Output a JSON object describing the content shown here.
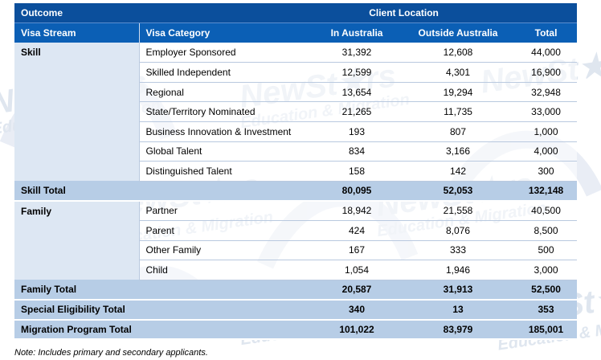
{
  "header": {
    "outcome_label": "Outcome",
    "client_location_label": "Client Location",
    "visa_stream_label": "Visa Stream",
    "visa_category_label": "Visa Category",
    "in_australia_label": "In Australia",
    "outside_australia_label": "Outside Australia",
    "total_label": "Total"
  },
  "skill": {
    "stream": "Skill",
    "rows": [
      {
        "category": "Employer Sponsored",
        "in": "31,392",
        "out": "12,608",
        "total": "44,000"
      },
      {
        "category": "Skilled Independent",
        "in": "12,599",
        "out": "4,301",
        "total": "16,900"
      },
      {
        "category": "Regional",
        "in": "13,654",
        "out": "19,294",
        "total": "32,948"
      },
      {
        "category": "State/Territory Nominated",
        "in": "21,265",
        "out": "11,735",
        "total": "33,000"
      },
      {
        "category": "Business Innovation & Investment",
        "in": "193",
        "out": "807",
        "total": "1,000"
      },
      {
        "category": "Global Talent",
        "in": "834",
        "out": "3,166",
        "total": "4,000"
      },
      {
        "category": "Distinguished Talent",
        "in": "158",
        "out": "142",
        "total": "300"
      }
    ],
    "total": {
      "label": "Skill Total",
      "in": "80,095",
      "out": "52,053",
      "total": "132,148"
    }
  },
  "family": {
    "stream": "Family",
    "rows": [
      {
        "category": "Partner",
        "in": "18,942",
        "out": "21,558",
        "total": "40,500"
      },
      {
        "category": "Parent",
        "in": "424",
        "out": "8,076",
        "total": "8,500"
      },
      {
        "category": "Other Family",
        "in": "167",
        "out": "333",
        "total": "500"
      },
      {
        "category": "Child",
        "in": "1,054",
        "out": "1,946",
        "total": "3,000"
      }
    ],
    "total": {
      "label": "Family Total",
      "in": "20,587",
      "out": "31,913",
      "total": "52,500"
    }
  },
  "special": {
    "label": "Special Eligibility Total",
    "in": "340",
    "out": "13",
    "total": "353"
  },
  "program": {
    "label": "Migration Program Total",
    "in": "101,022",
    "out": "83,979",
    "total": "185,001"
  },
  "note": "Note: Includes primary and secondary applicants.",
  "watermark": {
    "brand": "NewSt★rs",
    "tagline": "Education & Migration"
  }
}
